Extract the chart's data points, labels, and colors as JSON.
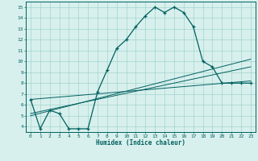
{
  "xlabel": "Humidex (Indice chaleur)",
  "x_values": [
    0,
    1,
    2,
    3,
    4,
    5,
    6,
    7,
    8,
    9,
    10,
    11,
    12,
    13,
    14,
    15,
    16,
    17,
    18,
    19,
    20,
    21,
    22,
    23
  ],
  "y_main": [
    6.5,
    3.8,
    5.5,
    5.2,
    3.8,
    3.8,
    3.8,
    7.2,
    9.2,
    11.2,
    12.0,
    13.2,
    14.2,
    15.0,
    14.5,
    15.0,
    14.5,
    13.2,
    10.0,
    9.5,
    8.0,
    8.0,
    8.0,
    8.0
  ],
  "line_color": "#006060",
  "bg_color": "#d8f0ed",
  "grid_color": "#a0d4cc",
  "ylim": [
    3.5,
    15.5
  ],
  "xlim": [
    -0.5,
    23.5
  ],
  "yticks": [
    4,
    5,
    6,
    7,
    8,
    9,
    10,
    11,
    12,
    13,
    14,
    15
  ],
  "xticks": [
    0,
    1,
    2,
    3,
    4,
    5,
    6,
    7,
    8,
    9,
    10,
    11,
    12,
    13,
    14,
    15,
    16,
    17,
    18,
    19,
    20,
    21,
    22,
    23
  ],
  "trend_lines": [
    {
      "x0": 0,
      "y0": 6.5,
      "x1": 23,
      "y1": 8.2
    },
    {
      "x0": 0,
      "y0": 5.2,
      "x1": 23,
      "y1": 9.5
    },
    {
      "x0": 0,
      "y0": 5.0,
      "x1": 23,
      "y1": 10.2
    }
  ]
}
